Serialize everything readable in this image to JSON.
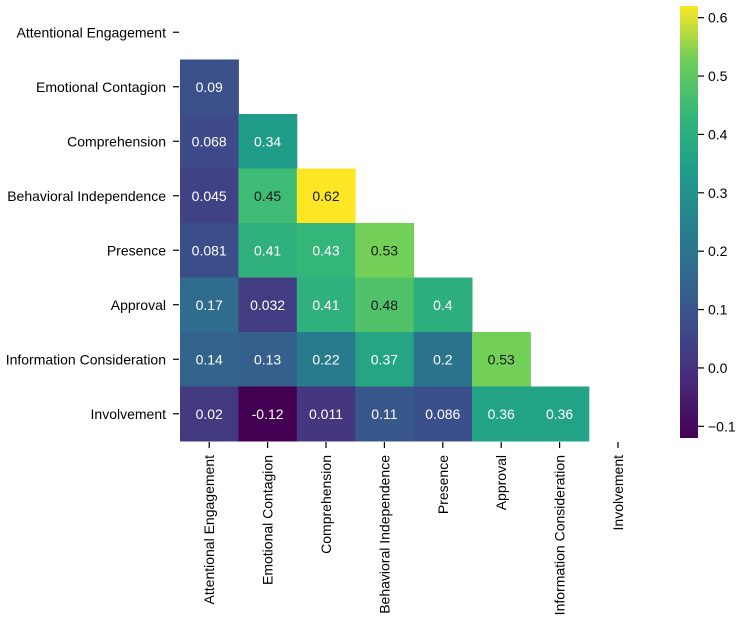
{
  "chart_data": {
    "type": "heatmap",
    "title": "",
    "xlabel": "",
    "ylabel": "",
    "variables": [
      "Attentional Engagement",
      "Emotional Contagion",
      "Comprehension",
      "Behavioral Independence",
      "Presence",
      "Approval",
      "Information Consideration",
      "Involvement"
    ],
    "mask": "upper-triangle-including-diagonal",
    "rows": [
      {
        "label": "Attentional Engagement",
        "values": []
      },
      {
        "label": "Emotional Contagion",
        "values": [
          {
            "value": 0.09,
            "text": "0.09"
          }
        ]
      },
      {
        "label": "Comprehension",
        "values": [
          {
            "value": 0.068,
            "text": "0.068"
          },
          {
            "value": 0.34,
            "text": "0.34"
          }
        ]
      },
      {
        "label": "Behavioral Independence",
        "values": [
          {
            "value": 0.045,
            "text": "0.045"
          },
          {
            "value": 0.45,
            "text": "0.45"
          },
          {
            "value": 0.62,
            "text": "0.62"
          }
        ]
      },
      {
        "label": "Presence",
        "values": [
          {
            "value": 0.081,
            "text": "0.081"
          },
          {
            "value": 0.41,
            "text": "0.41"
          },
          {
            "value": 0.43,
            "text": "0.43"
          },
          {
            "value": 0.53,
            "text": "0.53"
          }
        ]
      },
      {
        "label": "Approval",
        "values": [
          {
            "value": 0.17,
            "text": "0.17"
          },
          {
            "value": 0.032,
            "text": "0.032"
          },
          {
            "value": 0.41,
            "text": "0.41"
          },
          {
            "value": 0.48,
            "text": "0.48"
          },
          {
            "value": 0.4,
            "text": "0.4"
          }
        ]
      },
      {
        "label": "Information Consideration",
        "values": [
          {
            "value": 0.14,
            "text": "0.14"
          },
          {
            "value": 0.13,
            "text": "0.13"
          },
          {
            "value": 0.22,
            "text": "0.22"
          },
          {
            "value": 0.37,
            "text": "0.37"
          },
          {
            "value": 0.2,
            "text": "0.2"
          },
          {
            "value": 0.53,
            "text": "0.53"
          }
        ]
      },
      {
        "label": "Involvement",
        "values": [
          {
            "value": 0.02,
            "text": "0.02"
          },
          {
            "value": -0.12,
            "text": "-0.12"
          },
          {
            "value": 0.011,
            "text": "0.011"
          },
          {
            "value": 0.11,
            "text": "0.11"
          },
          {
            "value": 0.086,
            "text": "0.086"
          },
          {
            "value": 0.36,
            "text": "0.36"
          },
          {
            "value": 0.36,
            "text": "0.36"
          }
        ]
      }
    ],
    "colormap": "viridis",
    "vmin": -0.12,
    "vmax": 0.62,
    "colorbar": {
      "ticks": [
        {
          "value": 0.6,
          "label": "0.6"
        },
        {
          "value": 0.5,
          "label": "0.5"
        },
        {
          "value": 0.4,
          "label": "0.4"
        },
        {
          "value": 0.3,
          "label": "0.3"
        },
        {
          "value": 0.2,
          "label": "0.2"
        },
        {
          "value": 0.1,
          "label": "0.1"
        },
        {
          "value": 0.0,
          "label": "0.0"
        },
        {
          "value": -0.1,
          "label": "−0.1"
        }
      ],
      "placement": "right"
    },
    "grid": false
  }
}
